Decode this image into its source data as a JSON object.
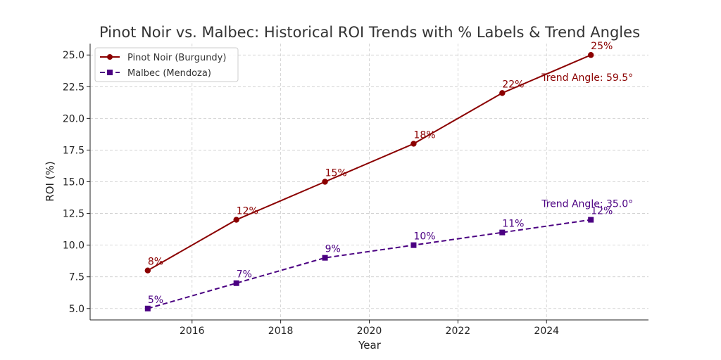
{
  "chart_data": {
    "type": "line",
    "title": "Pinot Noir vs. Malbec: Historical ROI Trends with % Labels & Trend Angles",
    "xlabel": "Year",
    "ylabel": "ROI (%)",
    "x": [
      2015,
      2017,
      2019,
      2021,
      2023,
      2025
    ],
    "xlim": [
      2013.7,
      2026.3
    ],
    "ylim": [
      4.1,
      25.9
    ],
    "x_ticks": [
      2016,
      2018,
      2020,
      2022,
      2024
    ],
    "x_tick_labels": [
      "2016",
      "2018",
      "2020",
      "2022",
      "2024"
    ],
    "y_ticks": [
      5.0,
      7.5,
      10.0,
      12.5,
      15.0,
      17.5,
      20.0,
      22.5,
      25.0
    ],
    "y_tick_labels": [
      "5.0",
      "7.5",
      "10.0",
      "12.5",
      "15.0",
      "17.5",
      "20.0",
      "22.5",
      "25.0"
    ],
    "grid": true,
    "legend_position": "top-left",
    "series": [
      {
        "name": "Pinot Noir (Burgundy)",
        "values": [
          8,
          12,
          15,
          18,
          22,
          25
        ],
        "labels": [
          "8%",
          "12%",
          "15%",
          "18%",
          "22%",
          "25%"
        ],
        "color": "#8b0000",
        "marker": "circle",
        "dashed": false,
        "trend_annotation": "Trend Angle: 59.5°"
      },
      {
        "name": "Malbec (Mendoza)",
        "values": [
          5,
          7,
          9,
          10,
          11,
          12
        ],
        "labels": [
          "5%",
          "7%",
          "9%",
          "10%",
          "11%",
          "12%"
        ],
        "color": "#4b0082",
        "marker": "square",
        "dashed": true,
        "trend_annotation": "Trend Angle: 35.0°"
      }
    ]
  }
}
